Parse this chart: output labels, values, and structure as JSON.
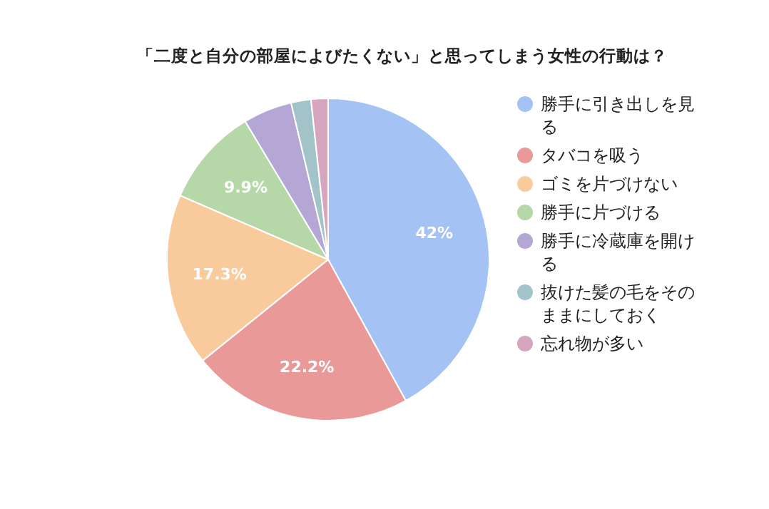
{
  "chart_data": {
    "type": "pie",
    "title": "「二度と自分の部屋によびたくない」と思ってしまう女性の行動は？",
    "categories": [
      "勝手に引き出しを見る",
      "タバコを吸う",
      "ゴミを片づけない",
      "勝手に片づける",
      "勝手に冷蔵庫を開ける",
      "抜けた髪の毛をそのままにしておく",
      "忘れ物が多い"
    ],
    "values": [
      42,
      22.2,
      17.3,
      9.9,
      4.9,
      2.0,
      1.7
    ],
    "colors": [
      "#a4c2f4",
      "#ea9999",
      "#f9cb9c",
      "#b6d7a8",
      "#b4a7d6",
      "#a2c4c9",
      "#d5a6bd"
    ],
    "value_labels": [
      "42%",
      "22.2%",
      "17.3%",
      "9.9%",
      null,
      null,
      null
    ],
    "legend": "right"
  }
}
